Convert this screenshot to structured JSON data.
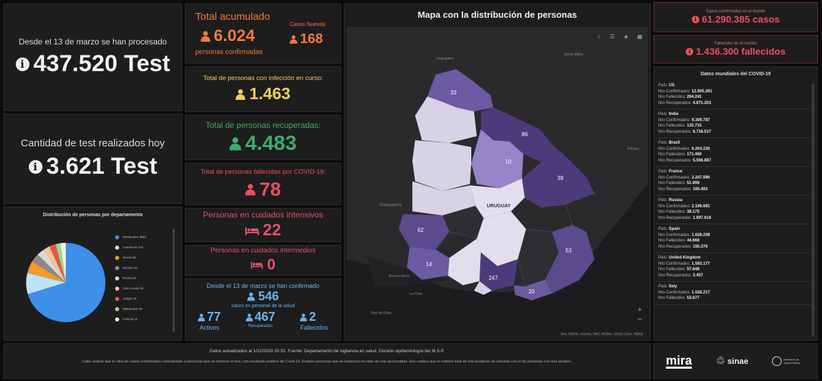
{
  "tests_total": {
    "caption": "Desde el 13 de marzo se han procesado",
    "value": "437.520 Test"
  },
  "tests_today": {
    "caption": "Cantidad de test realizados hoy",
    "value": "3.621 Test"
  },
  "pie": {
    "title": "Distribución de personas por departamento",
    "legend": [
      {
        "label": "Montevideo 3951",
        "color": "#3e8fe8"
      },
      {
        "label": "Canelones 247",
        "color": "#bfe3f7"
      },
      {
        "label": "Rivera 86",
        "color": "#f29a2e"
      },
      {
        "label": "Soriano 62",
        "color": "#8a8a8a"
      },
      {
        "label": "Rocha 53",
        "color": "#d8d8d8"
      },
      {
        "label": "Cerro Largo 39",
        "color": "#f6c48c"
      },
      {
        "label": "Artigas 33",
        "color": "#e05a4c"
      },
      {
        "label": "Maldonado 20",
        "color": "#9ed68c"
      },
      {
        "label": "Colonia 14",
        "color": "#f2efe0"
      }
    ]
  },
  "stats": {
    "total_label": "Total acumulado",
    "total_value": "6.024",
    "total_sub": "personas confirmadas",
    "new_label": "Casos Nuevos",
    "new_value": "168",
    "active_label": "Total de personas con infección en curso:",
    "active_value": "1.463",
    "recovered_label": "Total de personas recuperadas:",
    "recovered_value": "4.483",
    "deceased_label": "Total de personas fallecidas por COVID-19:",
    "deceased_value": "78",
    "icu_label": "Personas en cuidados intensivos",
    "icu_value": "22",
    "inter_label": "Personas en cuidados intermedios",
    "inter_value": "0",
    "health_caption1": "Desde el 13 de marzo se han confirmado",
    "health_value": "546",
    "health_caption2": "casos en personal de la salud",
    "health_active_value": "77",
    "health_active_label": "Activos",
    "health_recovered_value": "467",
    "health_recovered_label": "Recuperados",
    "health_deceased_value": "2",
    "health_deceased_label": "Fallecidos"
  },
  "map": {
    "title": "Mapa con la distribución de personas",
    "country_label": "URUGUAY",
    "attribution": "Esri, HERE, Garmin, FAO, NOAA, USGS | Esri, HERE",
    "places": [
      "Uruguaiana",
      "Santa Maria",
      "Pelotas",
      "Gualeguaychú",
      "Buenos Aires",
      "La Plata",
      "Mar del Plata"
    ],
    "dept_values": [
      "33",
      "86",
      "10",
      "39",
      "62",
      "14",
      "247",
      "20",
      "53"
    ],
    "zoom_in": "+",
    "zoom_out": "−"
  },
  "world": {
    "cases_label": "Casos confirmados en el mundo",
    "cases_value": "61.290.385 casos",
    "deaths_label": "Fallecidos en el mundo",
    "deaths_value": "1.436.300 fallecidos",
    "list_title": "Datos mundiales del COVID-19",
    "row_labels": {
      "country": "País:",
      "confirmed": "Nro Confirmados:",
      "deaths": "Nro Fallecidos:",
      "recovered": "Nro Recuperados:"
    },
    "countries": [
      {
        "name": "US",
        "confirmed": "12.995.261",
        "deaths": "264.241",
        "recovered": "4.871.203"
      },
      {
        "name": "India",
        "confirmed": "9.309.787",
        "deaths": "135.715",
        "recovered": "8.718.517"
      },
      {
        "name": "Brazil",
        "confirmed": "6.204.220",
        "deaths": "171.460",
        "recovered": "5.556.887"
      },
      {
        "name": "France",
        "confirmed": "2.247.996",
        "deaths": "51.998",
        "recovered": "165.493"
      },
      {
        "name": "Russia",
        "confirmed": "2.196.691",
        "deaths": "38.175",
        "recovered": "1.697.618"
      },
      {
        "name": "Spain",
        "confirmed": "1.628.208",
        "deaths": "44.668",
        "recovered": "150.376"
      },
      {
        "name": "United Kingdom",
        "confirmed": "1.593.177",
        "deaths": "57.648",
        "recovered": "3.457"
      },
      {
        "name": "Italy",
        "confirmed": "1.538.217",
        "deaths": "53.677",
        "recovered": ""
      }
    ]
  },
  "footer": {
    "updated": "Datos actualizados al 1/12/2020 20:52. Fuente: Departamento de vigilancia en salud. División epidemiología del M.S.P.",
    "note": "Cabe aclarar que la cifra de casos confirmados corresponde a personas que se hicieron el test, con resultado positivo de Covid 19. Existen personas que se testearon en más de una oportunidad. Eso explica que el número total de test positivos no coincida con el de personas con test positivo.",
    "logo1": "mira",
    "logo2": "sinae",
    "logo3": "Ministerio de Salud Pública"
  }
}
